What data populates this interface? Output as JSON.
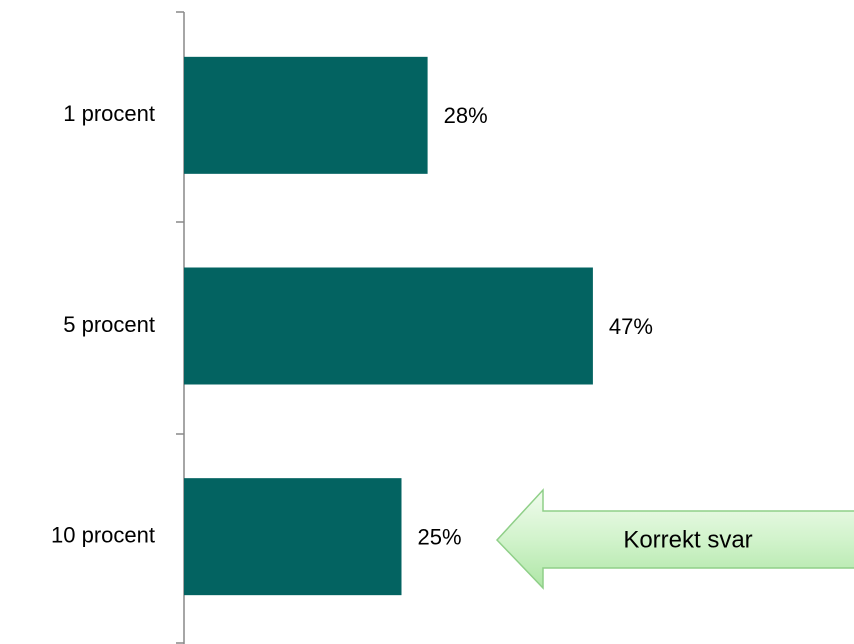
{
  "chart_data": {
    "type": "bar",
    "orientation": "horizontal",
    "categories": [
      "1 procent",
      "5 procent",
      "10 procent"
    ],
    "values": [
      28,
      47,
      25
    ],
    "value_labels": [
      "28%",
      "47%",
      "25%"
    ],
    "color": "#036361",
    "annotation": "Korrekt svar"
  }
}
